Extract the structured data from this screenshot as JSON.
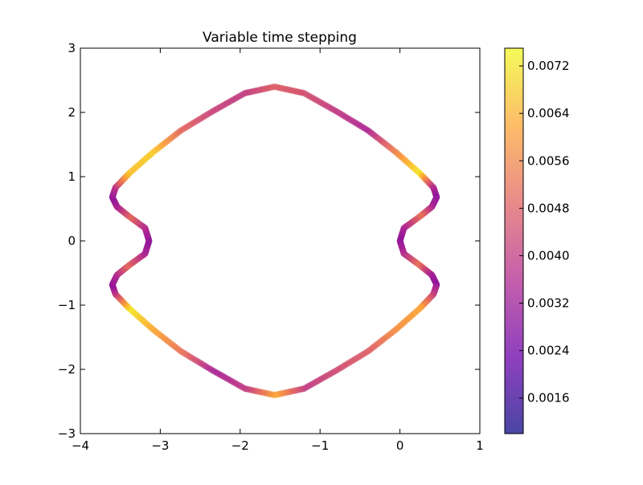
{
  "chart_data": {
    "type": "scatter",
    "title": "Variable time stepping",
    "xlabel": "",
    "ylabel": "",
    "xlim": [
      -4,
      1
    ],
    "ylim": [
      -3,
      3
    ],
    "xticks": [
      -4,
      -3,
      -2,
      -1,
      0,
      1
    ],
    "yticks": [
      -3,
      -2,
      -1,
      0,
      1,
      2,
      3
    ],
    "xtick_labels": [
      "−4",
      "−3",
      "−2",
      "−1",
      "0",
      "1"
    ],
    "ytick_labels": [
      "−3",
      "−2",
      "−1",
      "0",
      "1",
      "2",
      "3"
    ],
    "grid": false,
    "series": [
      {
        "x": [
          -1.57,
          -1.2,
          -0.8,
          -0.4,
          -0.05,
          0.25,
          0.42,
          0.46,
          0.4,
          0.25,
          0.05,
          0.0,
          0.05,
          0.25,
          0.4,
          0.46,
          0.42,
          0.25,
          -0.05,
          -0.4,
          -0.8,
          -1.2,
          -1.57,
          -1.94,
          -2.34,
          -2.74,
          -3.09,
          -3.39,
          -3.56,
          -3.6,
          -3.54,
          -3.39,
          -3.19,
          -3.14,
          -3.19,
          -3.39,
          -3.54,
          -3.6,
          -3.56,
          -3.39,
          -3.09,
          -2.74,
          -2.34,
          -1.94
        ],
        "y": [
          2.4,
          2.3,
          2.02,
          1.72,
          1.38,
          1.05,
          0.83,
          0.68,
          0.53,
          0.38,
          0.2,
          0.0,
          -0.2,
          -0.38,
          -0.53,
          -0.68,
          -0.83,
          -1.05,
          -1.38,
          -1.72,
          -2.02,
          -2.3,
          -2.4,
          -2.3,
          -2.02,
          -1.72,
          -1.38,
          -1.05,
          -0.83,
          -0.68,
          -0.53,
          -0.38,
          -0.2,
          0.0,
          0.2,
          0.38,
          0.53,
          0.68,
          0.83,
          1.05,
          1.38,
          1.72,
          2.02,
          2.3
        ],
        "color_values": [
          0.0048,
          0.0045,
          0.004,
          0.0035,
          0.0055,
          0.0072,
          0.0038,
          0.003,
          0.0034,
          0.0052,
          0.0036,
          0.003,
          0.0036,
          0.0052,
          0.0034,
          0.003,
          0.004,
          0.0062,
          0.0058,
          0.0048,
          0.0044,
          0.004,
          0.0062,
          0.004,
          0.0034,
          0.0052,
          0.0062,
          0.0072,
          0.0042,
          0.003,
          0.0036,
          0.005,
          0.0036,
          0.003,
          0.0036,
          0.005,
          0.0036,
          0.003,
          0.0038,
          0.0066,
          0.0068,
          0.005,
          0.0042,
          0.004
        ]
      }
    ],
    "colorbar": {
      "colormap": "plasma",
      "range": [
        0.001,
        0.0075
      ],
      "ticks": [
        0.0016,
        0.0024,
        0.0032,
        0.004,
        0.0048,
        0.0056,
        0.0064,
        0.0072
      ],
      "tick_labels": [
        "0.0016",
        "0.0024",
        "0.0032",
        "0.0040",
        "0.0048",
        "0.0056",
        "0.0064",
        "0.0072"
      ],
      "colors": [
        "#0d0887",
        "#6a00a8",
        "#b12a90",
        "#e16462",
        "#fca636",
        "#f0f921"
      ]
    }
  }
}
